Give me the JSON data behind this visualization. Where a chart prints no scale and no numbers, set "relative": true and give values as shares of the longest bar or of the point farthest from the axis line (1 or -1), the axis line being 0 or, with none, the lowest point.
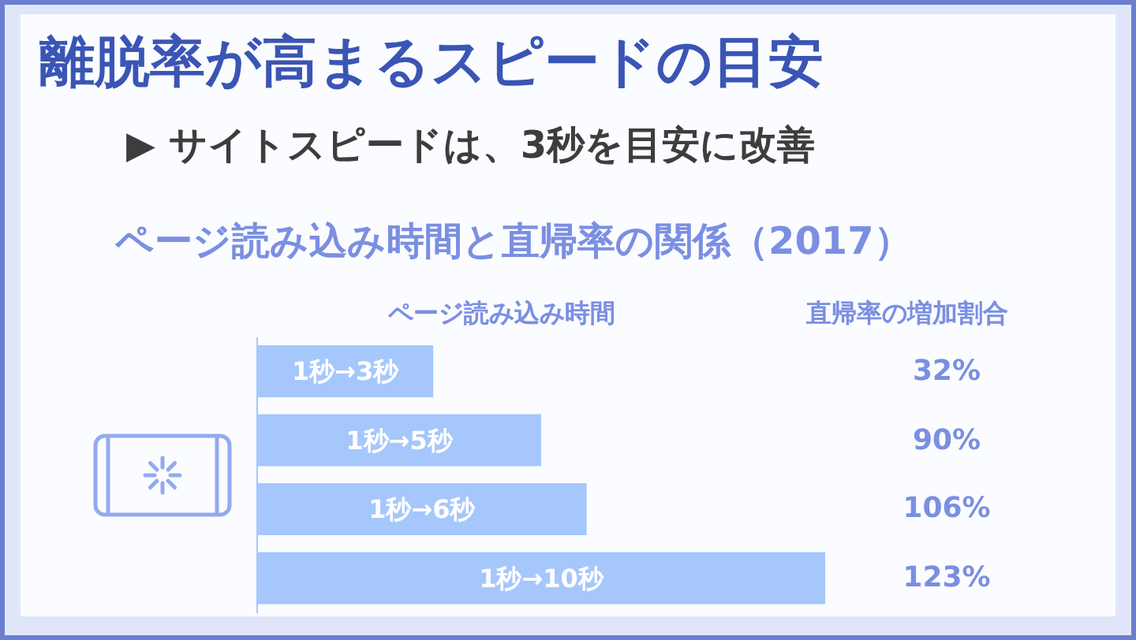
{
  "chart_data": {
    "type": "bar",
    "orientation": "horizontal",
    "title": "離脱率が高まるスピードの目安",
    "subtitle": "▶ サイトスピードは、3秒を目安に改善",
    "xlabel": "ページ読み込み時間",
    "categories": [
      "1秒→3秒",
      "1秒→5秒",
      "1秒→6秒",
      "1秒→10秒"
    ],
    "values": [
      0.31,
      0.5,
      0.58,
      1
    ],
    "relative": true,
    "color": "#a5c7fb",
    "annotations": [
      "ページ読み込み時間と直帰率の関係（2017）",
      "直帰率の増加割合",
      "32%",
      "90%",
      "106%",
      "123%"
    ]
  }
}
